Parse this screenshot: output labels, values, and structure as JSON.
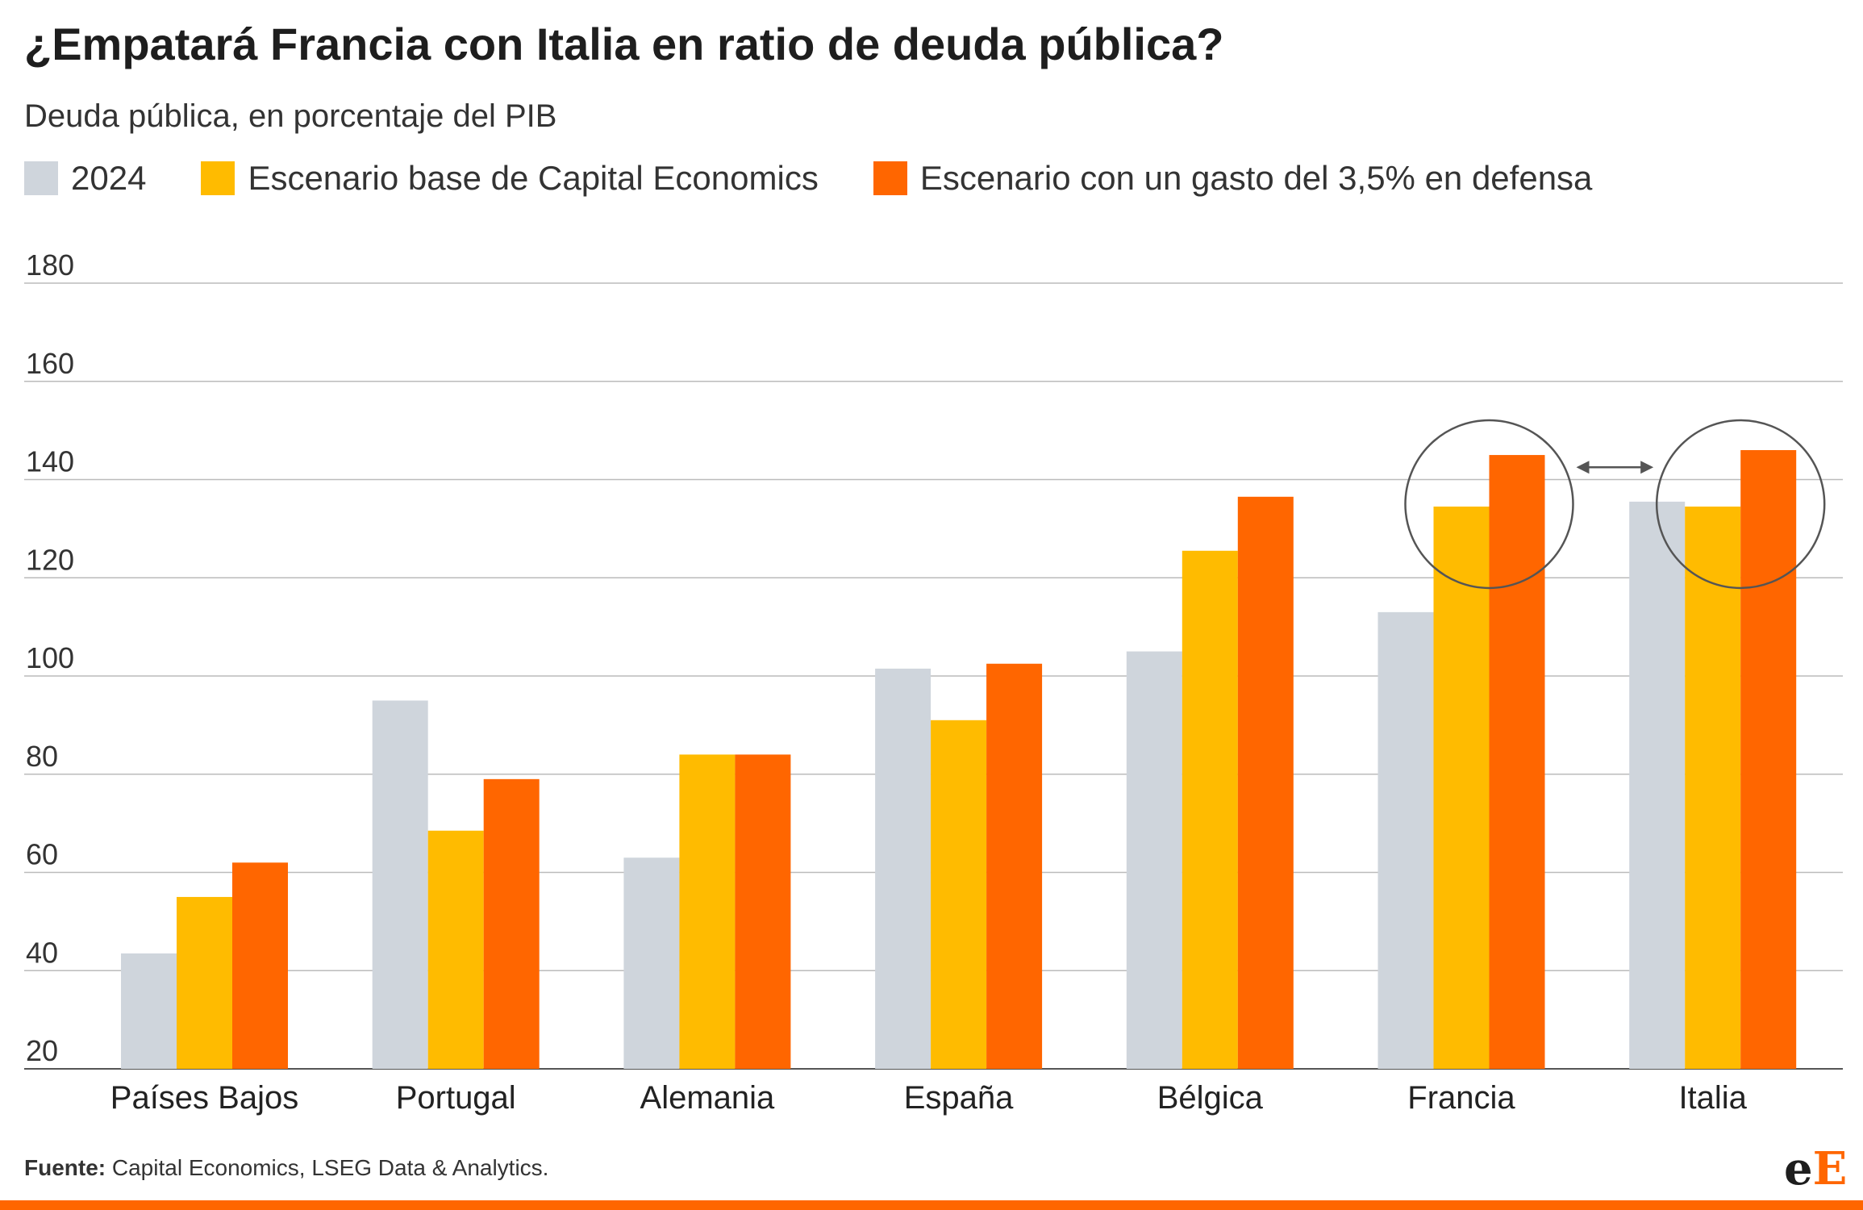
{
  "title": "¿Empatará Francia con Italia en ratio de deuda pública?",
  "subtitle": "Deuda pública, en porcentaje del PIB",
  "legend": [
    {
      "label": "2024",
      "color": "#cfd5dc"
    },
    {
      "label": "Escenario base de Capital Economics",
      "color": "#ffbb00"
    },
    {
      "label": "Escenario con un gasto del 3,5% en defensa",
      "color": "#ff6600"
    }
  ],
  "source": {
    "prefix": "Fuente:",
    "text": " Capital Economics, LSEG Data & Analytics."
  },
  "logo": {
    "part1": "e",
    "part2": "E"
  },
  "chart_data": {
    "type": "bar",
    "categories": [
      "Países Bajos",
      "Portugal",
      "Alemania",
      "España",
      "Bélgica",
      "Francia",
      "Italia"
    ],
    "series": [
      {
        "name": "2024",
        "color": "#cfd5dc",
        "values": [
          43.5,
          95,
          63,
          101.5,
          105,
          113,
          135.5
        ]
      },
      {
        "name": "Escenario base de Capital Economics",
        "color": "#ffbb00",
        "values": [
          55,
          68.5,
          84,
          91,
          125.5,
          134.5,
          134.5
        ]
      },
      {
        "name": "Escenario con un gasto del 3,5% en defensa",
        "color": "#ff6600",
        "values": [
          62,
          79,
          84,
          102.5,
          136.5,
          145,
          146
        ]
      }
    ],
    "ylim": [
      20,
      180
    ],
    "yticks": [
      20,
      40,
      60,
      80,
      100,
      120,
      140,
      160,
      180
    ],
    "grid": true,
    "legend_position": "top-left",
    "annotations": [
      {
        "type": "circle",
        "category": "Francia",
        "around": "Escenario base y escenario defensa",
        "center_value": 135
      },
      {
        "type": "circle",
        "category": "Italia",
        "around": "Escenario base y escenario defensa",
        "center_value": 135
      },
      {
        "type": "double-arrow",
        "from": "Francia",
        "to": "Italia",
        "value": 142.5
      }
    ]
  }
}
